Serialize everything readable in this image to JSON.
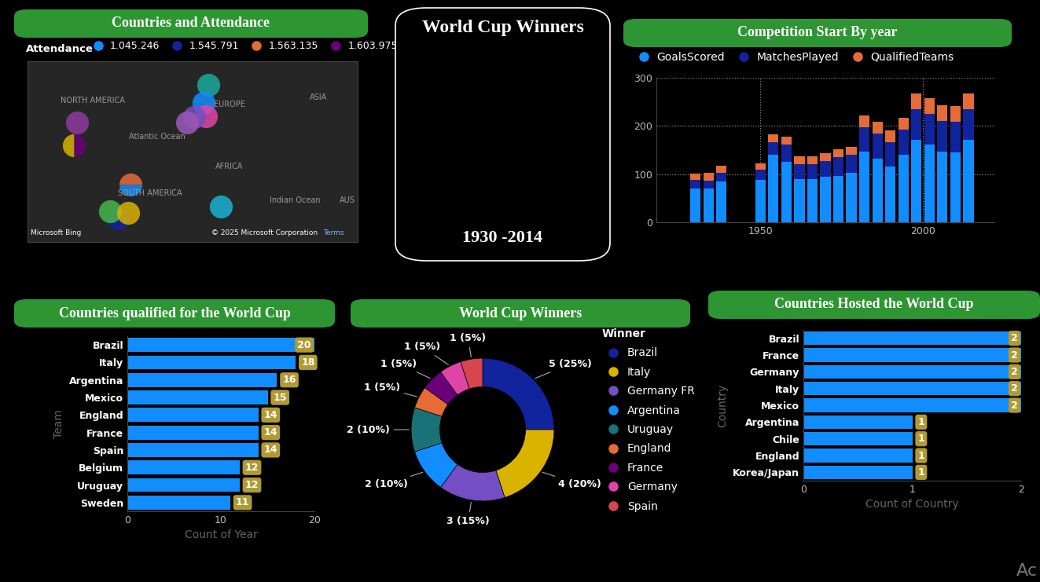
{
  "chart_data": [
    {
      "type": "map",
      "title": "Countries and Attendance",
      "legend_title": "Attendance",
      "legend": "upper left",
      "series": [
        {
          "name": "1.045.246",
          "color": "#118dff"
        },
        {
          "name": "1.545.791",
          "color": "#12239e"
        },
        {
          "name": "1.563.135",
          "color": "#e66c37"
        },
        {
          "name": "1.603.975",
          "color": "#6b007b"
        }
      ],
      "xlim": [
        -138,
        142
      ],
      "ylim": [
        -50,
        79
      ],
      "tick_labels": false,
      "points": [
        {
          "x": 15,
          "y": 62,
          "color": "#1aab9b"
        },
        {
          "x": 11,
          "y": 49,
          "color": "#118dff"
        },
        {
          "x": 13,
          "y": 40,
          "color": "#e044a7"
        },
        {
          "x": 3,
          "y": 39,
          "color": "#744ec2"
        },
        {
          "x": -3,
          "y": 35,
          "color": "#9b59b6"
        },
        {
          "x": -96,
          "y": 35,
          "color": "#8f3ba0"
        },
        {
          "x": -99,
          "y": 19,
          "colors": [
            "#d9b300",
            "#6b007b"
          ],
          "marker": "left"
        },
        {
          "x": -51,
          "y": -9,
          "colors": [
            "#e66c37",
            "#118dff"
          ],
          "marker": "top"
        },
        {
          "x": -61,
          "y": -33,
          "color": "#12239e"
        },
        {
          "x": -68,
          "y": -28,
          "color": "#45b649"
        },
        {
          "x": -53,
          "y": -29,
          "color": "#d9b300"
        },
        {
          "x": 26,
          "y": -25,
          "color": "#1ab2d4"
        }
      ],
      "annotations": [
        {
          "text": "NORTH AMERICA",
          "x": -83,
          "y": 51
        },
        {
          "text": "EUROPE",
          "x": 33,
          "y": 48
        },
        {
          "text": "ASIA",
          "x": 109,
          "y": 53
        },
        {
          "text": "Atlantic Ocean",
          "x": -28,
          "y": 25
        },
        {
          "text": "AFRICA",
          "x": 33,
          "y": 4
        },
        {
          "text": "SOUTH AMERICA",
          "x": -34,
          "y": -15
        },
        {
          "text": "Indian Ocean",
          "x": 89,
          "y": -20
        },
        {
          "text": "AUS",
          "x": 133,
          "y": -20
        }
      ],
      "attribution": [
        "Microsoft Bing",
        "© 2025 Microsoft Corporation",
        "Terms"
      ]
    },
    {
      "type": "card",
      "title": "World Cup Winners",
      "text": "1930 -2014"
    },
    {
      "type": "bar",
      "stacked": true,
      "title": "Competition Start By year",
      "legend": "upper left",
      "grid": true,
      "x": [
        1930,
        1934,
        1938,
        1950,
        1954,
        1958,
        1962,
        1966,
        1970,
        1974,
        1978,
        1982,
        1986,
        1990,
        1994,
        1998,
        2002,
        2006,
        2010,
        2014
      ],
      "series": [
        {
          "name": "GoalsScored",
          "color": "#118dff",
          "values": [
            70,
            70,
            84,
            88,
            140,
            126,
            89,
            89,
            95,
            97,
            102,
            146,
            132,
            115,
            141,
            171,
            161,
            147,
            145,
            171
          ]
        },
        {
          "name": "MatchesPlayed",
          "color": "#12239e",
          "values": [
            18,
            17,
            18,
            22,
            26,
            35,
            32,
            32,
            32,
            38,
            38,
            52,
            52,
            52,
            52,
            64,
            64,
            64,
            64,
            64
          ]
        },
        {
          "name": "QualifiedTeams",
          "color": "#e66c37",
          "values": [
            13,
            16,
            15,
            13,
            16,
            16,
            16,
            16,
            16,
            16,
            16,
            24,
            24,
            24,
            24,
            32,
            32,
            32,
            32,
            32
          ]
        }
      ],
      "xlim": [
        1918,
        2022
      ],
      "xticks": [
        1950,
        2000
      ],
      "ylim": [
        0,
        300
      ],
      "yticks": [
        0,
        100,
        200,
        300
      ]
    },
    {
      "type": "bar",
      "orientation": "horizontal",
      "title": "Countries qualified for the World Cup",
      "categories": [
        "Brazil",
        "Italy",
        "Argentina",
        "Mexico",
        "England",
        "France",
        "Spain",
        "Belgium",
        "Uruguay",
        "Sweden"
      ],
      "values": [
        20,
        18,
        16,
        15,
        14,
        14,
        14,
        12,
        12,
        11
      ],
      "color": "#118dff",
      "xlabel": "Count of Year",
      "ylabel": "Team",
      "xlim": [
        0,
        20
      ],
      "xticks": [
        0,
        10,
        20
      ],
      "data_labels": true
    },
    {
      "type": "pie",
      "title": "World Cup Winners",
      "legend_title": "Winner",
      "legend": "upper left",
      "categories": [
        "Brazil",
        "Italy",
        "Germany FR",
        "Argentina",
        "Uruguay",
        "England",
        "France",
        "Germany",
        "Spain"
      ],
      "values": [
        5,
        4,
        3,
        2,
        2,
        1,
        1,
        1,
        1
      ],
      "value_labels": [
        "5 (25%)",
        "4 (20%)",
        "3 (15%)",
        "2 (10%)",
        "2 (10%)",
        "1 (5%)",
        "1 (5%)",
        "1 (5%)",
        "1 (5%)"
      ],
      "colors": [
        "#12239e",
        "#d9b300",
        "#744ec2",
        "#118dff",
        "#197278",
        "#e66c37",
        "#6b007b",
        "#e044a7",
        "#d64550"
      ]
    },
    {
      "type": "bar",
      "orientation": "horizontal",
      "title": "Countries Hosted the World Cup",
      "categories": [
        "Brazil",
        "France",
        "Germany",
        "Italy",
        "Mexico",
        "Argentina",
        "Chile",
        "England",
        "Korea/Japan"
      ],
      "values": [
        2,
        2,
        2,
        2,
        2,
        1,
        1,
        1,
        1
      ],
      "color": "#118dff",
      "xlabel": "Count of Country",
      "ylabel": "Country",
      "xlim": [
        0,
        2
      ],
      "xticks": [
        0,
        1,
        2
      ],
      "data_labels": true
    }
  ],
  "watermark": "Ac"
}
